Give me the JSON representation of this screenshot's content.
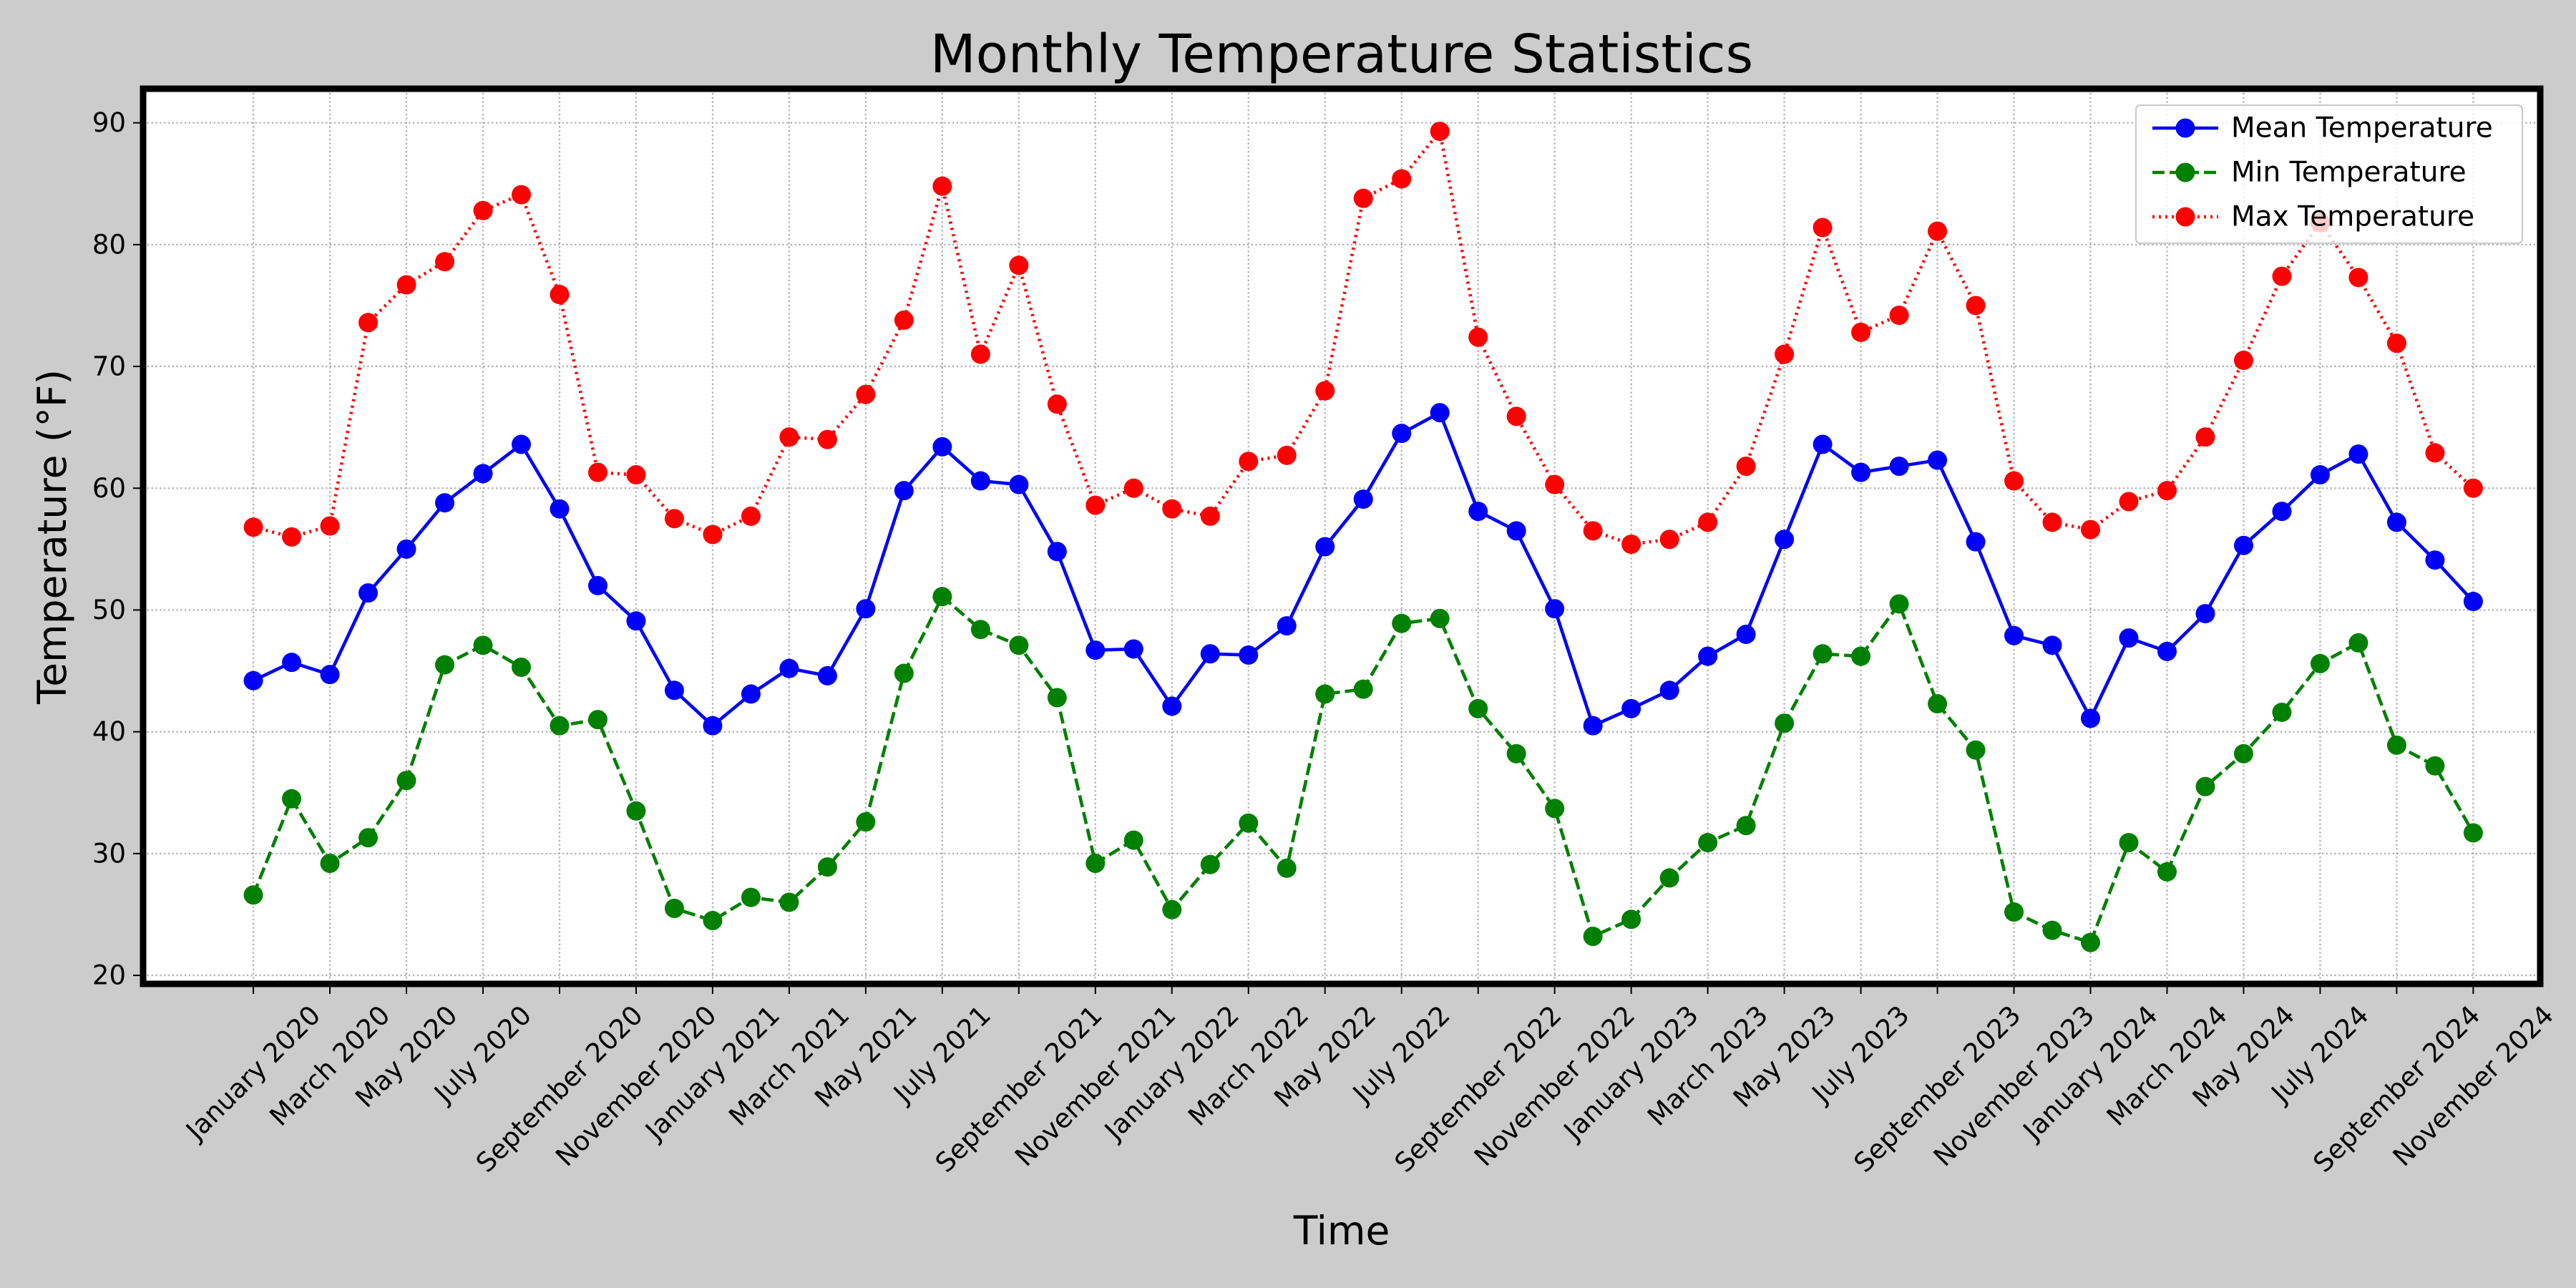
{
  "chart_data": {
    "type": "line",
    "title": "Monthly Temperature Statistics",
    "xlabel": "Time",
    "ylabel": "Temperature (°F)",
    "categories": [
      "January 2020",
      null,
      "March 2020",
      null,
      "May 2020",
      null,
      "July 2020",
      null,
      "September 2020",
      null,
      "November 2020",
      null,
      "January 2021",
      null,
      "March 2021",
      null,
      "May 2021",
      null,
      "July 2021",
      null,
      "September 2021",
      null,
      "November 2021",
      null,
      "January 2022",
      null,
      "March 2022",
      null,
      "May 2022",
      null,
      "July 2022",
      null,
      "September 2022",
      null,
      "November 2022",
      null,
      "January 2023",
      null,
      "March 2023",
      null,
      "May 2023",
      null,
      "July 2023",
      null,
      "September 2023",
      null,
      "November 2023",
      null,
      "January 2024",
      null,
      "March 2024",
      null,
      "May 2024",
      null,
      "July 2024",
      null,
      "September 2024",
      null,
      "November 2024"
    ],
    "series": [
      {
        "name": "Mean Temperature",
        "color": "#0000ff",
        "linestyle": "solid",
        "values": [
          44.2,
          45.7,
          44.7,
          51.4,
          55.0,
          58.8,
          61.2,
          63.6,
          58.3,
          52.0,
          49.1,
          43.4,
          40.5,
          43.1,
          45.2,
          44.6,
          50.1,
          59.8,
          63.4,
          60.6,
          60.3,
          54.8,
          46.7,
          46.8,
          42.1,
          46.4,
          46.3,
          48.7,
          55.2,
          59.1,
          64.5,
          66.2,
          58.1,
          56.5,
          50.1,
          40.5,
          41.9,
          43.4,
          46.2,
          48.0,
          55.8,
          63.6,
          61.3,
          61.8,
          62.3,
          55.6,
          47.9,
          47.1,
          41.1,
          47.7,
          46.6,
          49.7,
          55.3,
          58.1,
          61.1,
          62.8,
          57.2,
          54.1,
          50.7
        ]
      },
      {
        "name": "Min Temperature",
        "color": "#008000",
        "linestyle": "dashed",
        "values": [
          26.6,
          34.5,
          29.2,
          31.3,
          36.0,
          45.5,
          47.1,
          45.3,
          40.5,
          41.0,
          33.5,
          25.5,
          24.5,
          26.4,
          26.0,
          28.9,
          32.6,
          44.8,
          51.1,
          48.4,
          47.1,
          42.8,
          29.2,
          31.1,
          25.4,
          29.1,
          32.5,
          28.8,
          43.1,
          43.5,
          48.9,
          49.3,
          41.9,
          38.2,
          33.7,
          23.2,
          24.6,
          28.0,
          30.9,
          32.3,
          40.7,
          46.4,
          46.2,
          50.5,
          42.3,
          38.5,
          25.2,
          23.7,
          22.7,
          30.9,
          28.5,
          35.5,
          38.2,
          41.6,
          45.6,
          47.3,
          38.9,
          37.2,
          31.7
        ]
      },
      {
        "name": "Max Temperature",
        "color": "#ff0000",
        "linestyle": "dotted",
        "values": [
          56.8,
          56.0,
          56.9,
          73.6,
          76.7,
          78.6,
          82.8,
          84.1,
          75.9,
          61.3,
          61.1,
          57.5,
          56.2,
          57.7,
          64.2,
          64.0,
          67.7,
          73.8,
          84.8,
          71.0,
          78.3,
          66.9,
          58.6,
          60.0,
          58.3,
          57.7,
          62.2,
          62.7,
          68.0,
          83.8,
          85.4,
          89.3,
          72.4,
          65.9,
          60.3,
          56.5,
          55.4,
          55.8,
          57.2,
          61.8,
          71.0,
          81.4,
          72.8,
          74.2,
          81.1,
          75.0,
          60.6,
          57.2,
          56.6,
          58.9,
          59.8,
          64.2,
          70.5,
          77.4,
          81.8,
          77.3,
          71.9,
          62.9,
          60.0
        ]
      }
    ],
    "ylim": [
      19.3,
      92.8
    ],
    "yticks": [
      20,
      30,
      40,
      50,
      60,
      70,
      80,
      90
    ],
    "grid": true,
    "legend": "upper right"
  }
}
